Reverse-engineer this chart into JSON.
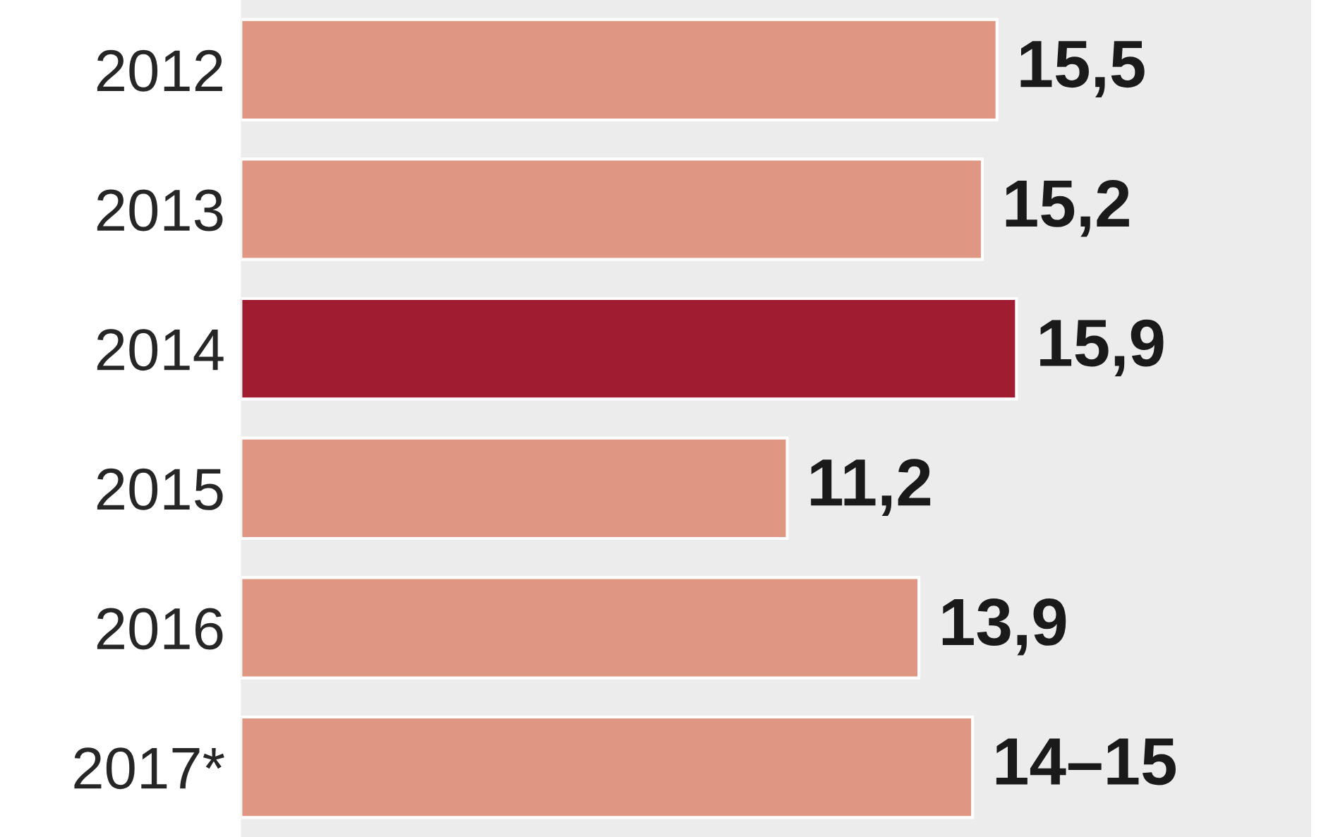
{
  "chart_data": {
    "type": "bar",
    "orientation": "horizontal",
    "tick_labels": "y",
    "categories": [
      "2012",
      "2013",
      "2014",
      "2015",
      "2016",
      "2017*"
    ],
    "values": [
      15.5,
      15.2,
      15.9,
      11.2,
      13.9,
      15.0
    ],
    "value_labels": [
      "15,5",
      "15,2",
      "15,9",
      "11,2",
      "13,9",
      "14–15"
    ],
    "colors": [
      "#df9783",
      "#df9783",
      "#a01c30",
      "#df9783",
      "#df9783",
      "#df9783"
    ],
    "grid": false
  }
}
